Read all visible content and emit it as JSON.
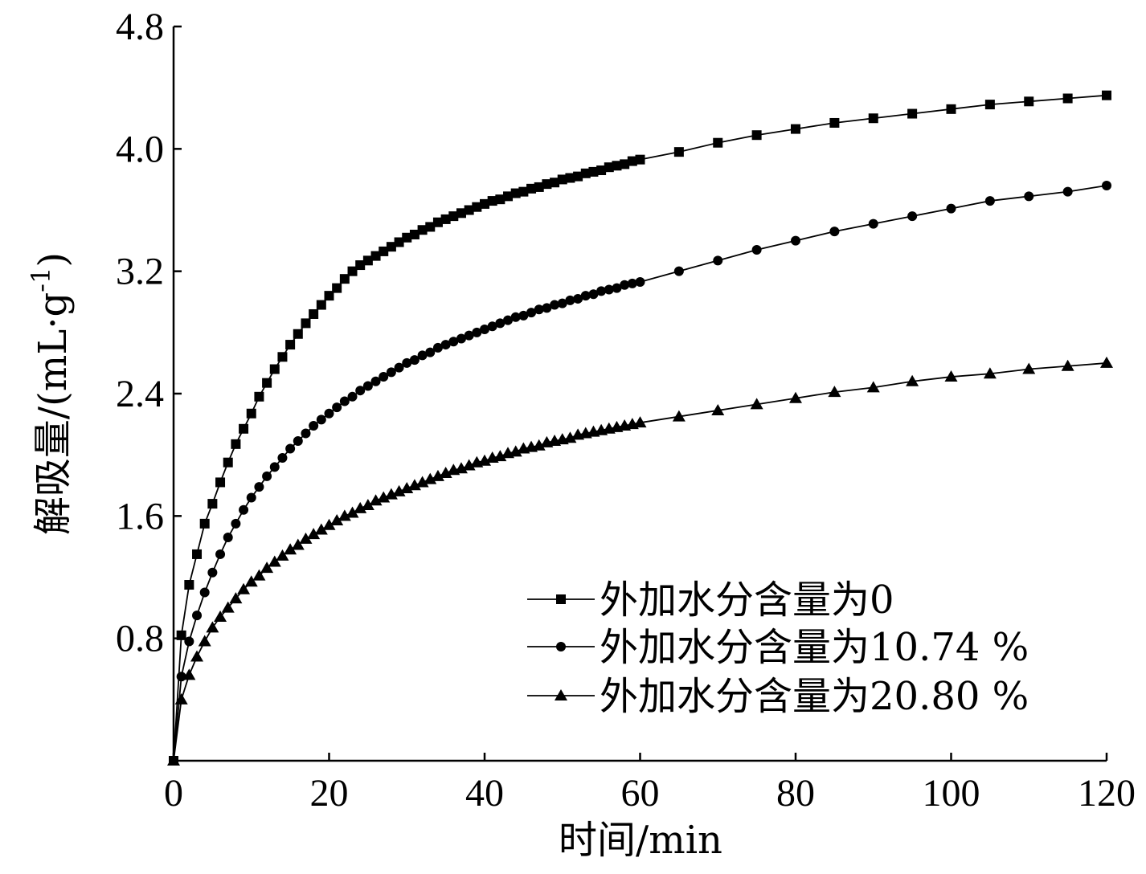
{
  "chart_data": {
    "type": "line",
    "xlabel": "时间/min",
    "ylabel_main": "解吸量/(mL·g",
    "ylabel_sup": "-1",
    "ylabel_close": ")",
    "xlim": [
      0,
      120
    ],
    "ylim": [
      0,
      4.8
    ],
    "xticks": [
      0,
      20,
      40,
      60,
      80,
      100,
      120
    ],
    "yticks": [
      0.8,
      1.6,
      2.4,
      3.2,
      4.0,
      4.8
    ],
    "xtick_labels": [
      "0",
      "20",
      "40",
      "60",
      "80",
      "100",
      "120"
    ],
    "ytick_labels": [
      "0.8",
      "1.6",
      "2.4",
      "3.2",
      "4.0",
      "4.8"
    ],
    "grid": false,
    "legend_position": "bottom-right",
    "series": [
      {
        "name": "外加水分含量为0",
        "marker": "square",
        "x": [
          0,
          1,
          2,
          3,
          4,
          5,
          6,
          7,
          8,
          9,
          10,
          11,
          12,
          13,
          14,
          15,
          16,
          17,
          18,
          19,
          20,
          21,
          22,
          23,
          24,
          25,
          26,
          27,
          28,
          29,
          30,
          31,
          32,
          33,
          34,
          35,
          36,
          37,
          38,
          39,
          40,
          41,
          42,
          43,
          44,
          45,
          46,
          47,
          48,
          49,
          50,
          51,
          52,
          53,
          54,
          55,
          56,
          57,
          58,
          59,
          60,
          65,
          70,
          75,
          80,
          85,
          90,
          95,
          100,
          105,
          110,
          115,
          120
        ],
        "y": [
          0.0,
          0.82,
          1.15,
          1.35,
          1.55,
          1.68,
          1.82,
          1.95,
          2.07,
          2.17,
          2.27,
          2.38,
          2.47,
          2.56,
          2.64,
          2.72,
          2.79,
          2.86,
          2.92,
          2.98,
          3.04,
          3.09,
          3.15,
          3.2,
          3.24,
          3.27,
          3.3,
          3.33,
          3.36,
          3.39,
          3.42,
          3.44,
          3.47,
          3.49,
          3.52,
          3.54,
          3.56,
          3.58,
          3.6,
          3.62,
          3.64,
          3.66,
          3.67,
          3.69,
          3.71,
          3.72,
          3.74,
          3.75,
          3.77,
          3.78,
          3.8,
          3.81,
          3.82,
          3.84,
          3.85,
          3.86,
          3.88,
          3.89,
          3.9,
          3.92,
          3.93,
          3.98,
          4.04,
          4.09,
          4.13,
          4.17,
          4.2,
          4.23,
          4.26,
          4.29,
          4.31,
          4.33,
          4.35
        ]
      },
      {
        "name": "外加水分含量为10.74 %",
        "marker": "circle",
        "x": [
          0,
          1,
          2,
          3,
          4,
          5,
          6,
          7,
          8,
          9,
          10,
          11,
          12,
          13,
          14,
          15,
          16,
          17,
          18,
          19,
          20,
          21,
          22,
          23,
          24,
          25,
          26,
          27,
          28,
          29,
          30,
          31,
          32,
          33,
          34,
          35,
          36,
          37,
          38,
          39,
          40,
          41,
          42,
          43,
          44,
          45,
          46,
          47,
          48,
          49,
          50,
          51,
          52,
          53,
          54,
          55,
          56,
          57,
          58,
          59,
          60,
          65,
          70,
          75,
          80,
          85,
          90,
          95,
          100,
          105,
          110,
          115,
          120
        ],
        "y": [
          0.0,
          0.55,
          0.78,
          0.95,
          1.1,
          1.23,
          1.35,
          1.46,
          1.55,
          1.64,
          1.72,
          1.79,
          1.86,
          1.92,
          1.98,
          2.04,
          2.09,
          2.14,
          2.19,
          2.23,
          2.27,
          2.31,
          2.35,
          2.38,
          2.42,
          2.45,
          2.48,
          2.51,
          2.54,
          2.57,
          2.6,
          2.62,
          2.65,
          2.67,
          2.7,
          2.72,
          2.74,
          2.76,
          2.78,
          2.8,
          2.82,
          2.84,
          2.86,
          2.88,
          2.9,
          2.91,
          2.93,
          2.95,
          2.96,
          2.98,
          2.99,
          3.01,
          3.02,
          3.04,
          3.05,
          3.07,
          3.08,
          3.09,
          3.11,
          3.12,
          3.13,
          3.2,
          3.27,
          3.34,
          3.4,
          3.46,
          3.51,
          3.56,
          3.61,
          3.66,
          3.69,
          3.72,
          3.76
        ]
      },
      {
        "name": "外加水分含量为20.80 %",
        "marker": "triangle",
        "x": [
          0,
          1,
          2,
          3,
          4,
          5,
          6,
          7,
          8,
          9,
          10,
          11,
          12,
          13,
          14,
          15,
          16,
          17,
          18,
          19,
          20,
          21,
          22,
          23,
          24,
          25,
          26,
          27,
          28,
          29,
          30,
          31,
          32,
          33,
          34,
          35,
          36,
          37,
          38,
          39,
          40,
          41,
          42,
          43,
          44,
          45,
          46,
          47,
          48,
          49,
          50,
          51,
          52,
          53,
          54,
          55,
          56,
          57,
          58,
          59,
          60,
          65,
          70,
          75,
          80,
          85,
          90,
          95,
          100,
          105,
          110,
          115,
          120
        ],
        "y": [
          0.0,
          0.4,
          0.56,
          0.68,
          0.78,
          0.87,
          0.94,
          1.0,
          1.06,
          1.12,
          1.17,
          1.21,
          1.26,
          1.3,
          1.34,
          1.38,
          1.41,
          1.45,
          1.48,
          1.51,
          1.54,
          1.57,
          1.6,
          1.62,
          1.65,
          1.67,
          1.7,
          1.72,
          1.74,
          1.76,
          1.78,
          1.8,
          1.82,
          1.84,
          1.86,
          1.88,
          1.9,
          1.91,
          1.93,
          1.95,
          1.96,
          1.98,
          1.99,
          2.01,
          2.02,
          2.04,
          2.05,
          2.06,
          2.08,
          2.09,
          2.1,
          2.11,
          2.13,
          2.14,
          2.15,
          2.16,
          2.17,
          2.18,
          2.19,
          2.2,
          2.21,
          2.25,
          2.29,
          2.33,
          2.37,
          2.41,
          2.44,
          2.48,
          2.51,
          2.53,
          2.56,
          2.58,
          2.6
        ]
      }
    ]
  }
}
